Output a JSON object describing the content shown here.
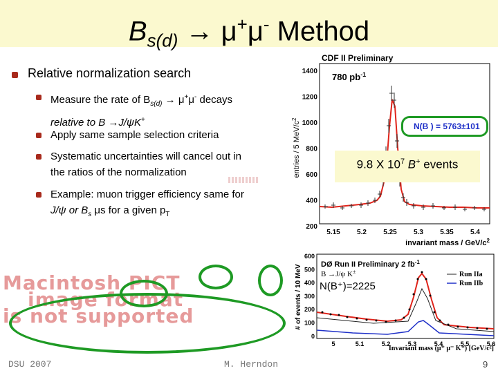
{
  "slide": {
    "title_prefix": "B",
    "title_sub": "s(d)",
    "title_arrow": " → μ",
    "title_sup1": "+",
    "title_mu2": "μ",
    "title_sup2": "-",
    "title_suffix": " Method"
  },
  "bullets": {
    "main": "Relative normalization search",
    "sub1_a": "Measure the rate of B",
    "sub1_a_sub": "s(d)",
    "sub1_a_rest": " → μ",
    "sub1_a_sup1": "+",
    "sub1_a_mu": "μ",
    "sub1_a_sup2": "-",
    "sub1_a_end": " decays",
    "sub1_b": "relative to B →J/ψK",
    "sub1_b_sup": "+",
    "sub2": "Apply same sample selection criteria",
    "sub3_a": "Systematic uncertainties will cancel out in",
    "sub3_b": "the ratios of the normalization",
    "sub4_a": "Example: muon trigger efficiency same for",
    "sub4_b": "J/ψ or B",
    "sub4_b_sub": "s",
    "sub4_b_rest": " μs for a given p",
    "sub4_b_sub2": "T"
  },
  "pict": {
    "line1": "Macintosh PICT",
    "line2": "image format",
    "line3": "is not supported"
  },
  "cdf_plot": {
    "title": "CDF II Preliminary",
    "lumi": "780 pb",
    "lumi_sup": "-1",
    "ylabel": "entries / 5 MeV/c",
    "ylabel_sup": "2",
    "xlabel": "invariant mass / GeV/c",
    "xlabel_sup": "2",
    "yticks": [
      "1400",
      "1200",
      "1000",
      "800",
      "600",
      "400",
      "200"
    ],
    "xticks": [
      "5.15",
      "5.2",
      "5.25",
      "5.3",
      "5.35",
      "5.4"
    ],
    "nb_label": "N(B ) = 5763",
    "nb_pm": "±101"
  },
  "highlight": {
    "text_a": "9.8 X 10",
    "text_sup": "7",
    "text_b": " B",
    "text_b_sup": "+",
    "text_c": " events"
  },
  "d0_plot": {
    "title": "DØ Run II Preliminary 2 fb",
    "title_sup": "-1",
    "decay": "B  →J/ψ K",
    "decay_sup": "±",
    "nlabel": "N(B⁺)=2225",
    "legend1": "Run IIa",
    "legend2": "Run IIb",
    "ylabel": "# of events / 10 MeV",
    "xlabel": "Invariant mass (μ⁺ μ⁻ K⁺)  [GeV/c²]",
    "yticks": [
      "600",
      "500",
      "400",
      "300",
      "200",
      "100",
      "0"
    ],
    "xticks": [
      "5",
      "5.1",
      "5.2",
      "5.3",
      "5.4",
      "5.5",
      "5.6"
    ]
  },
  "footer": {
    "left": "DSU 2007",
    "center": "M. Herndon",
    "page": "9"
  },
  "colors": {
    "title_band": "#fbf9cf",
    "bullet": "#a82a1c",
    "annotation_green": "#1e9a24",
    "fit_red": "#e0241b",
    "run2b_blue": "#1f30c8"
  }
}
